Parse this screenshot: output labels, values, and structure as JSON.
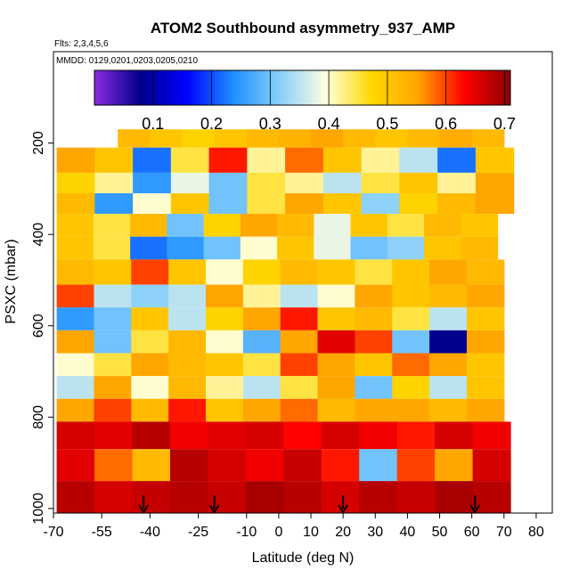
{
  "chart_data": {
    "type": "heatmap",
    "title": "ATOM2 Southbound asymmetry_937_AMP",
    "subtitle_flights": "Flts: 2,3,4,5,6",
    "subtitle_dates": "MMDD: 0129,0201,0203,0205,0210",
    "xlabel": "Latitude (deg N)",
    "ylabel": "PSXC (mbar)",
    "xlim": [
      -70,
      85
    ],
    "ylim": [
      1010,
      0
    ],
    "x_ticks": [
      -70,
      -55,
      -40,
      -25,
      -10,
      0,
      10,
      20,
      30,
      40,
      50,
      60,
      70,
      80
    ],
    "x_tick_labels": [
      "-70",
      "-55",
      "-40",
      "-25",
      "-10",
      "0",
      "10",
      "20",
      "30",
      "40",
      "50",
      "60",
      "70",
      "80"
    ],
    "y_ticks": [
      200,
      400,
      600,
      800,
      1000
    ],
    "y_tick_labels": [
      "200",
      "400",
      "600",
      "800",
      "1000"
    ],
    "colorbar": {
      "min": 0.0,
      "max": 0.71,
      "ticks": [
        0.1,
        0.2,
        0.3,
        0.4,
        0.5,
        0.6,
        0.7
      ],
      "tick_labels": [
        "0.1",
        "0.2",
        "0.3",
        "0.4",
        "0.5",
        "0.6",
        "0.7"
      ],
      "palette": [
        "#8a2be2",
        "#00008b",
        "#0000ff",
        "#1e90ff",
        "#87cefa",
        "#ffffe0",
        "#ffd700",
        "#ffa500",
        "#ff0000",
        "#8b0000"
      ]
    },
    "profile_markers_lat": [
      -42,
      -20,
      20,
      61
    ],
    "lat_extent": [
      -70,
      72
    ],
    "layers": [
      {
        "p_top": 170,
        "p_bottom": 210,
        "lat_min": -50,
        "lat_max": 70,
        "values": [
          0.52,
          0.5,
          0.48,
          0.5,
          0.52,
          0.53,
          0.55,
          0.52,
          0.5,
          0.52,
          0.54,
          0.52
        ]
      },
      {
        "p_top": 210,
        "p_bottom": 265,
        "lat_min": -69,
        "lat_max": 73,
        "values": [
          0.55,
          0.5,
          0.22,
          0.45,
          0.62,
          0.42,
          0.58,
          0.5,
          0.42,
          0.35,
          0.22,
          0.5
        ]
      },
      {
        "p_top": 265,
        "p_bottom": 310,
        "lat_min": -69,
        "lat_max": 73,
        "values": [
          0.48,
          0.42,
          0.25,
          0.38,
          0.3,
          0.45,
          0.42,
          0.35,
          0.45,
          0.5,
          0.42,
          0.55
        ]
      },
      {
        "p_top": 310,
        "p_bottom": 355,
        "lat_min": -69,
        "lat_max": 73,
        "values": [
          0.52,
          0.25,
          0.4,
          0.5,
          0.3,
          0.45,
          0.55,
          0.5,
          0.32,
          0.48,
          0.52,
          0.55
        ]
      },
      {
        "p_top": 355,
        "p_bottom": 405,
        "lat_min": -69,
        "lat_max": 68,
        "values": [
          0.5,
          0.45,
          0.52,
          0.3,
          0.48,
          0.55,
          0.52,
          0.38,
          0.5,
          0.45,
          0.52,
          0.5
        ]
      },
      {
        "p_top": 405,
        "p_bottom": 455,
        "lat_min": -69,
        "lat_max": 68,
        "values": [
          0.5,
          0.45,
          0.22,
          0.25,
          0.3,
          0.4,
          0.5,
          0.38,
          0.3,
          0.32,
          0.5,
          0.52
        ]
      },
      {
        "p_top": 455,
        "p_bottom": 510,
        "lat_min": -69,
        "lat_max": 70,
        "values": [
          0.52,
          0.5,
          0.6,
          0.5,
          0.4,
          0.48,
          0.52,
          0.5,
          0.45,
          0.5,
          0.55,
          0.52
        ]
      },
      {
        "p_top": 510,
        "p_bottom": 560,
        "lat_min": -69,
        "lat_max": 70,
        "values": [
          0.6,
          0.35,
          0.32,
          0.35,
          0.55,
          0.42,
          0.35,
          0.4,
          0.55,
          0.5,
          0.52,
          0.55
        ]
      },
      {
        "p_top": 560,
        "p_bottom": 610,
        "lat_min": -69,
        "lat_max": 70,
        "values": [
          0.25,
          0.3,
          0.5,
          0.35,
          0.48,
          0.55,
          0.62,
          0.5,
          0.52,
          0.45,
          0.35,
          0.5
        ]
      },
      {
        "p_top": 610,
        "p_bottom": 660,
        "lat_min": -69,
        "lat_max": 70,
        "values": [
          0.55,
          0.3,
          0.45,
          0.52,
          0.4,
          0.28,
          0.55,
          0.65,
          0.6,
          0.3,
          0.08,
          0.55
        ]
      },
      {
        "p_top": 660,
        "p_bottom": 710,
        "lat_min": -69,
        "lat_max": 70,
        "values": [
          0.4,
          0.45,
          0.55,
          0.52,
          0.5,
          0.45,
          0.6,
          0.55,
          0.5,
          0.58,
          0.55,
          0.5
        ]
      },
      {
        "p_top": 710,
        "p_bottom": 760,
        "lat_min": -69,
        "lat_max": 70,
        "values": [
          0.35,
          0.55,
          0.4,
          0.52,
          0.42,
          0.35,
          0.45,
          0.55,
          0.3,
          0.48,
          0.35,
          0.5
        ]
      },
      {
        "p_top": 760,
        "p_bottom": 810,
        "lat_min": -69,
        "lat_max": 70,
        "values": [
          0.55,
          0.6,
          0.52,
          0.62,
          0.5,
          0.55,
          0.58,
          0.52,
          0.55,
          0.55,
          0.52,
          0.55
        ]
      },
      {
        "p_top": 810,
        "p_bottom": 870,
        "lat_min": -69,
        "lat_max": 72,
        "values": [
          0.66,
          0.65,
          0.68,
          0.64,
          0.65,
          0.66,
          0.63,
          0.66,
          0.64,
          0.62,
          0.66,
          0.64
        ]
      },
      {
        "p_top": 870,
        "p_bottom": 940,
        "lat_min": -69,
        "lat_max": 72,
        "values": [
          0.65,
          0.58,
          0.52,
          0.68,
          0.66,
          0.64,
          0.67,
          0.62,
          0.3,
          0.6,
          0.55,
          0.66
        ]
      },
      {
        "p_top": 940,
        "p_bottom": 1010,
        "lat_min": -69,
        "lat_max": 72,
        "values": [
          0.68,
          0.66,
          0.67,
          0.68,
          0.67,
          0.69,
          0.68,
          0.66,
          0.68,
          0.67,
          0.69,
          0.68
        ]
      }
    ]
  }
}
